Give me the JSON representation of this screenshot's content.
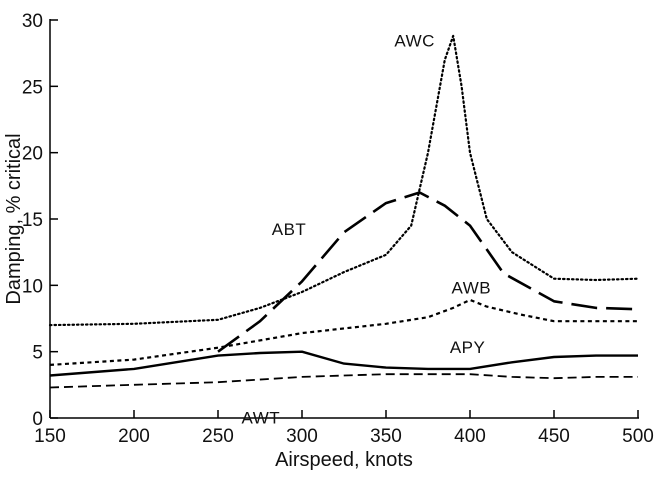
{
  "chart_data": {
    "type": "line",
    "title": "",
    "xlabel": "Airspeed, knots",
    "ylabel": "Damping, % critical",
    "xlim": [
      150,
      500
    ],
    "ylim": [
      0,
      30
    ],
    "xticks": [
      "150",
      "200",
      "250",
      "300",
      "350",
      "400",
      "450",
      "500"
    ],
    "yticks": [
      "0",
      "5",
      "10",
      "15",
      "20",
      "25",
      "30"
    ],
    "grid": false,
    "legend": "none",
    "series": [
      {
        "name": "AWC",
        "style": "dotted",
        "x": [
          150,
          200,
          250,
          275,
          300,
          325,
          350,
          365,
          375,
          385,
          390,
          395,
          400,
          410,
          425,
          450,
          475,
          500
        ],
        "y": [
          7.0,
          7.1,
          7.4,
          8.3,
          9.5,
          11.0,
          12.3,
          14.5,
          20.0,
          27.0,
          28.8,
          25.0,
          20.0,
          15.0,
          12.5,
          10.5,
          10.4,
          10.5
        ]
      },
      {
        "name": "ABT",
        "style": "long-dash",
        "x": [
          250,
          275,
          300,
          325,
          350,
          370,
          385,
          400,
          420,
          450,
          475,
          500
        ],
        "y": [
          5.0,
          7.3,
          10.3,
          14.0,
          16.2,
          17.0,
          16.0,
          14.5,
          10.9,
          8.8,
          8.3,
          8.2
        ]
      },
      {
        "name": "AWB",
        "style": "short-dash",
        "x": [
          150,
          200,
          250,
          300,
          350,
          375,
          390,
          400,
          410,
          430,
          450,
          475,
          500
        ],
        "y": [
          4.0,
          4.4,
          5.3,
          6.4,
          7.1,
          7.6,
          8.3,
          8.9,
          8.4,
          7.8,
          7.3,
          7.3,
          7.3
        ]
      },
      {
        "name": "APY",
        "style": "solid",
        "x": [
          150,
          200,
          250,
          275,
          300,
          325,
          350,
          375,
          400,
          425,
          450,
          475,
          500
        ],
        "y": [
          3.2,
          3.7,
          4.7,
          4.9,
          5.0,
          4.1,
          3.8,
          3.7,
          3.7,
          4.2,
          4.6,
          4.7,
          4.7
        ]
      },
      {
        "name": "AWT",
        "style": "dashed",
        "x": [
          150,
          200,
          250,
          300,
          325,
          350,
          400,
          425,
          450,
          475,
          500
        ],
        "y": [
          2.3,
          2.5,
          2.7,
          3.1,
          3.2,
          3.3,
          3.3,
          3.1,
          3.0,
          3.1,
          3.1
        ]
      }
    ],
    "annotations": [
      {
        "text": "AWC",
        "x": 355,
        "y": 28.0
      },
      {
        "text": "ABT",
        "x": 282,
        "y": 13.8
      },
      {
        "text": "AWB",
        "x": 389,
        "y": 9.4
      },
      {
        "text": "APY",
        "x": 388,
        "y": 4.9
      },
      {
        "text": "AWT",
        "x": 264,
        "y": -0.4
      }
    ]
  }
}
